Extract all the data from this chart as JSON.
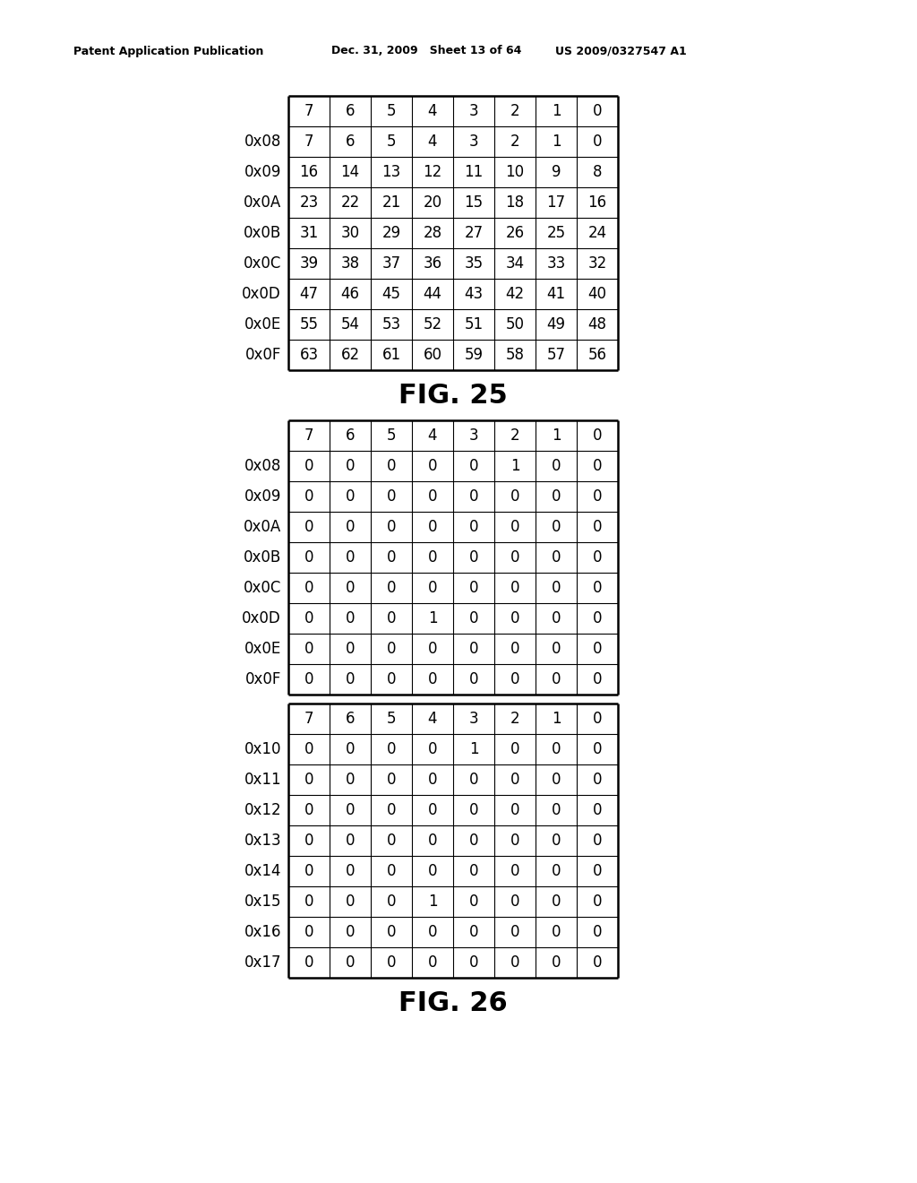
{
  "header_left": "Patent Application Publication",
  "header_mid": "Dec. 31, 2009   Sheet 13 of 64",
  "header_right": "US 2009/0327547 A1",
  "fig25_title": "FIG. 25",
  "fig26_title": "FIG. 26",
  "col_headers": [
    "7",
    "6",
    "5",
    "4",
    "3",
    "2",
    "1",
    "0"
  ],
  "table1_row_labels": [
    "0x08",
    "0x09",
    "0x0A",
    "0x0B",
    "0x0C",
    "0x0D",
    "0x0E",
    "0x0F"
  ],
  "table1_data": [
    [
      "7",
      "6",
      "5",
      "4",
      "3",
      "2",
      "1",
      "0"
    ],
    [
      "16",
      "14",
      "13",
      "12",
      "11",
      "10",
      "9",
      "8"
    ],
    [
      "23",
      "22",
      "21",
      "20",
      "15",
      "18",
      "17",
      "16"
    ],
    [
      "31",
      "30",
      "29",
      "28",
      "27",
      "26",
      "25",
      "24"
    ],
    [
      "39",
      "38",
      "37",
      "36",
      "35",
      "34",
      "33",
      "32"
    ],
    [
      "47",
      "46",
      "45",
      "44",
      "43",
      "42",
      "41",
      "40"
    ],
    [
      "55",
      "54",
      "53",
      "52",
      "51",
      "50",
      "49",
      "48"
    ],
    [
      "63",
      "62",
      "61",
      "60",
      "59",
      "58",
      "57",
      "56"
    ]
  ],
  "table2_row_labels": [
    "0x08",
    "0x09",
    "0x0A",
    "0x0B",
    "0x0C",
    "0x0D",
    "0x0E",
    "0x0F"
  ],
  "table2_data": [
    [
      "0",
      "0",
      "0",
      "0",
      "0",
      "1",
      "0",
      "0"
    ],
    [
      "0",
      "0",
      "0",
      "0",
      "0",
      "0",
      "0",
      "0"
    ],
    [
      "0",
      "0",
      "0",
      "0",
      "0",
      "0",
      "0",
      "0"
    ],
    [
      "0",
      "0",
      "0",
      "0",
      "0",
      "0",
      "0",
      "0"
    ],
    [
      "0",
      "0",
      "0",
      "0",
      "0",
      "0",
      "0",
      "0"
    ],
    [
      "0",
      "0",
      "0",
      "1",
      "0",
      "0",
      "0",
      "0"
    ],
    [
      "0",
      "0",
      "0",
      "0",
      "0",
      "0",
      "0",
      "0"
    ],
    [
      "0",
      "0",
      "0",
      "0",
      "0",
      "0",
      "0",
      "0"
    ]
  ],
  "table3_row_labels": [
    "0x10",
    "0x11",
    "0x12",
    "0x13",
    "0x14",
    "0x15",
    "0x16",
    "0x17"
  ],
  "table3_data": [
    [
      "0",
      "0",
      "0",
      "0",
      "1",
      "0",
      "0",
      "0"
    ],
    [
      "0",
      "0",
      "0",
      "0",
      "0",
      "0",
      "0",
      "0"
    ],
    [
      "0",
      "0",
      "0",
      "0",
      "0",
      "0",
      "0",
      "0"
    ],
    [
      "0",
      "0",
      "0",
      "0",
      "0",
      "0",
      "0",
      "0"
    ],
    [
      "0",
      "0",
      "0",
      "0",
      "0",
      "0",
      "0",
      "0"
    ],
    [
      "0",
      "0",
      "0",
      "1",
      "0",
      "0",
      "0",
      "0"
    ],
    [
      "0",
      "0",
      "0",
      "0",
      "0",
      "0",
      "0",
      "0"
    ],
    [
      "0",
      "0",
      "0",
      "0",
      "0",
      "0",
      "0",
      "0"
    ]
  ],
  "bg_color": "#ffffff",
  "text_color": "#000000",
  "line_color": "#000000"
}
